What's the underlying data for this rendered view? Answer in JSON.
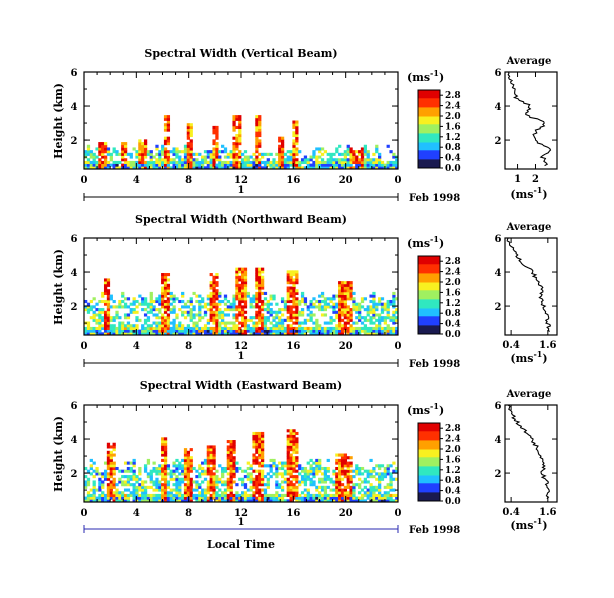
{
  "figure": {
    "xlabel": "Local Time",
    "date_label": "Feb 1998"
  },
  "panels": [
    {
      "title": "Spectral Width (Vertical Beam)",
      "ylabel": "Height (km)",
      "units": "(ms",
      "units_exp": "-1",
      "day_label": "1",
      "avg_title": "Average",
      "avg_units": "(ms",
      "avg_units_exp": "-1"
    },
    {
      "title": "Spectral Width (Northward Beam)",
      "ylabel": "Height (km)",
      "units": "(ms",
      "units_exp": "-1",
      "day_label": "1",
      "avg_title": "Average",
      "avg_units": "(ms",
      "avg_units_exp": "-1"
    },
    {
      "title": "Spectral Width (Eastward Beam)",
      "ylabel": "Height (km)",
      "units": "(ms",
      "units_exp": "-1",
      "day_label": "1",
      "avg_title": "Average",
      "avg_units": "(ms",
      "avg_units_exp": "-1"
    }
  ],
  "chart_data": [
    {
      "type": "heatmap",
      "title": "Spectral Width (Vertical Beam)",
      "ylabel": "Height (km)",
      "xlabel": "",
      "x_ticks": [
        "0",
        "4",
        "8",
        "12",
        "16",
        "20",
        "0"
      ],
      "xlim": [
        0,
        24
      ],
      "y_ticks": [
        "2",
        "4",
        "6"
      ],
      "ylim": [
        0.3,
        6.0
      ],
      "color_scale": {
        "label": "(ms-1)",
        "ticks": [
          "0.0",
          "0.4",
          "0.8",
          "1.2",
          "1.6",
          "2.0",
          "2.4",
          "2.8"
        ],
        "range": [
          0.0,
          3.0
        ],
        "colors": [
          "#1a1a50",
          "#2040ff",
          "#20c0ff",
          "#30e8c0",
          "#a0f060",
          "#f8f020",
          "#ffa000",
          "#ff3000",
          "#e00000"
        ]
      },
      "coverage": {
        "base_top_km": 1.5,
        "plumes": [
          {
            "start_h": 1.2,
            "end_h": 1.8,
            "top_km": 1.9
          },
          {
            "start_h": 2.8,
            "end_h": 3.3,
            "top_km": 1.9
          },
          {
            "start_h": 4.2,
            "end_h": 4.7,
            "top_km": 2.0
          },
          {
            "start_h": 6.2,
            "end_h": 6.6,
            "top_km": 3.4
          },
          {
            "start_h": 7.8,
            "end_h": 8.2,
            "top_km": 3.0
          },
          {
            "start_h": 9.8,
            "end_h": 10.2,
            "top_km": 2.9
          },
          {
            "start_h": 11.4,
            "end_h": 12.1,
            "top_km": 3.4
          },
          {
            "start_h": 13.0,
            "end_h": 13.6,
            "top_km": 3.5
          },
          {
            "start_h": 14.9,
            "end_h": 15.2,
            "top_km": 2.2
          },
          {
            "start_h": 15.9,
            "end_h": 16.4,
            "top_km": 3.3
          },
          {
            "start_h": 20.2,
            "end_h": 21.3,
            "top_km": 1.6
          }
        ]
      },
      "average": {
        "title": "Average",
        "xlabel": "(ms-1)",
        "x_ticks": [
          "1",
          "2"
        ],
        "xlim": [
          0.3,
          3.2
        ],
        "y_ticks": [
          "2",
          "4",
          "6"
        ],
        "ylim": [
          0.3,
          6.0
        ],
        "height_km": [
          0.5,
          1.0,
          1.5,
          2.0,
          2.5,
          3.0,
          3.5,
          4.0,
          4.5,
          5.0,
          5.5,
          6.0
        ],
        "width": [
          2.6,
          2.4,
          2.8,
          1.9,
          2.0,
          2.6,
          1.4,
          1.7,
          0.9,
          0.8,
          0.6,
          0.5
        ]
      }
    },
    {
      "type": "heatmap",
      "title": "Spectral Width (Northward Beam)",
      "ylabel": "Height (km)",
      "xlabel": "",
      "x_ticks": [
        "0",
        "4",
        "8",
        "12",
        "16",
        "20",
        "0"
      ],
      "xlim": [
        0,
        24
      ],
      "y_ticks": [
        "2",
        "4",
        "6"
      ],
      "ylim": [
        0.3,
        6.0
      ],
      "color_scale": {
        "label": "(ms-1)",
        "ticks": [
          "0.0",
          "0.4",
          "0.8",
          "1.2",
          "1.6",
          "2.0",
          "2.4",
          "2.8"
        ],
        "range": [
          0.0,
          3.0
        ],
        "colors": [
          "#1a1a50",
          "#2040ff",
          "#20c0ff",
          "#30e8c0",
          "#a0f060",
          "#f8f020",
          "#ffa000",
          "#ff3000",
          "#e00000"
        ]
      },
      "coverage": {
        "base_top_km": 2.6,
        "plumes": [
          {
            "start_h": 1.5,
            "end_h": 2.0,
            "top_km": 3.6
          },
          {
            "start_h": 5.8,
            "end_h": 6.5,
            "top_km": 4.0
          },
          {
            "start_h": 9.5,
            "end_h": 10.2,
            "top_km": 4.0
          },
          {
            "start_h": 11.6,
            "end_h": 12.4,
            "top_km": 4.2
          },
          {
            "start_h": 13.0,
            "end_h": 13.8,
            "top_km": 4.2
          },
          {
            "start_h": 15.6,
            "end_h": 16.4,
            "top_km": 4.1
          },
          {
            "start_h": 19.4,
            "end_h": 20.6,
            "top_km": 3.4
          }
        ]
      },
      "average": {
        "title": "Average",
        "xlabel": "(ms-1)",
        "x_ticks": [
          "0.4",
          "1.6"
        ],
        "xlim": [
          0.2,
          1.9
        ],
        "y_ticks": [
          "2",
          "4",
          "6"
        ],
        "ylim": [
          0.3,
          6.0
        ],
        "height_km": [
          0.5,
          1.0,
          1.5,
          2.0,
          2.5,
          3.0,
          3.5,
          4.0,
          4.5,
          5.0,
          5.5,
          6.0
        ],
        "width": [
          1.65,
          1.6,
          1.55,
          1.45,
          1.35,
          1.4,
          1.25,
          1.1,
          0.8,
          0.55,
          0.4,
          0.3
        ]
      }
    },
    {
      "type": "heatmap",
      "title": "Spectral Width (Eastward Beam)",
      "ylabel": "Height (km)",
      "xlabel": "Local Time",
      "x_ticks": [
        "0",
        "4",
        "8",
        "12",
        "16",
        "20",
        "0"
      ],
      "xlim": [
        0,
        24
      ],
      "y_ticks": [
        "2",
        "4",
        "6"
      ],
      "ylim": [
        0.3,
        6.0
      ],
      "color_scale": {
        "label": "(ms-1)",
        "ticks": [
          "0.0",
          "0.4",
          "0.8",
          "1.2",
          "1.6",
          "2.0",
          "2.4",
          "2.8"
        ],
        "range": [
          0.0,
          3.0
        ],
        "colors": [
          "#1a1a50",
          "#2040ff",
          "#20c0ff",
          "#30e8c0",
          "#a0f060",
          "#f8f020",
          "#ffa000",
          "#ff3000",
          "#e00000"
        ]
      },
      "coverage": {
        "base_top_km": 2.6,
        "plumes": [
          {
            "start_h": 1.8,
            "end_h": 2.3,
            "top_km": 3.8
          },
          {
            "start_h": 5.8,
            "end_h": 6.4,
            "top_km": 4.1
          },
          {
            "start_h": 7.6,
            "end_h": 8.2,
            "top_km": 3.5
          },
          {
            "start_h": 9.4,
            "end_h": 10.0,
            "top_km": 3.6
          },
          {
            "start_h": 11.0,
            "end_h": 11.6,
            "top_km": 4.0
          },
          {
            "start_h": 12.8,
            "end_h": 13.8,
            "top_km": 4.4
          },
          {
            "start_h": 15.6,
            "end_h": 16.3,
            "top_km": 4.6
          },
          {
            "start_h": 19.2,
            "end_h": 20.5,
            "top_km": 3.2
          }
        ]
      },
      "average": {
        "title": "Average",
        "xlabel": "(ms-1)",
        "x_ticks": [
          "0.4",
          "1.6"
        ],
        "xlim": [
          0.2,
          1.9
        ],
        "y_ticks": [
          "2",
          "4",
          "6"
        ],
        "ylim": [
          0.3,
          6.0
        ],
        "height_km": [
          0.5,
          1.0,
          1.5,
          2.0,
          2.5,
          3.0,
          3.5,
          4.0,
          4.5,
          5.0,
          5.5,
          6.0
        ],
        "width": [
          1.6,
          1.6,
          1.55,
          1.4,
          1.5,
          1.35,
          1.25,
          1.05,
          0.85,
          0.6,
          0.4,
          0.3
        ]
      }
    }
  ]
}
